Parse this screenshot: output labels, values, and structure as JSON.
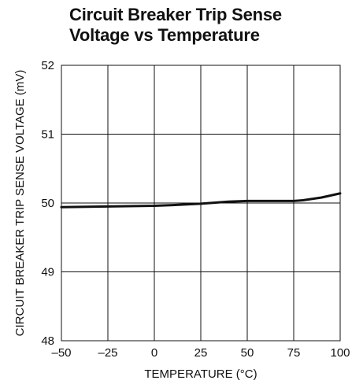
{
  "chart_data": {
    "type": "line",
    "title_lines": [
      "Circuit Breaker Trip Sense",
      "Voltage vs Temperature"
    ],
    "xlabel": "TEMPERATURE (°C)",
    "ylabel": "CIRCUIT BREAKER TRIP SENSE VOLTAGE (mV)",
    "xlim": [
      -50,
      100
    ],
    "ylim": [
      48,
      52
    ],
    "x_ticks": [
      -50,
      -25,
      0,
      25,
      50,
      75,
      100
    ],
    "x_tick_labels": [
      "–50",
      "–25",
      "0",
      "25",
      "50",
      "75",
      "100"
    ],
    "y_ticks": [
      48,
      49,
      50,
      51,
      52
    ],
    "y_tick_labels": [
      "48",
      "49",
      "50",
      "51",
      "52"
    ],
    "grid": true,
    "line_color": "#111111",
    "series": [
      {
        "x": [
          -50,
          -25,
          0,
          10,
          25,
          40,
          50,
          60,
          75,
          80,
          90,
          100
        ],
        "y": [
          49.94,
          49.95,
          49.96,
          49.97,
          49.99,
          50.02,
          50.03,
          50.03,
          50.03,
          50.04,
          50.08,
          50.14
        ]
      }
    ]
  }
}
